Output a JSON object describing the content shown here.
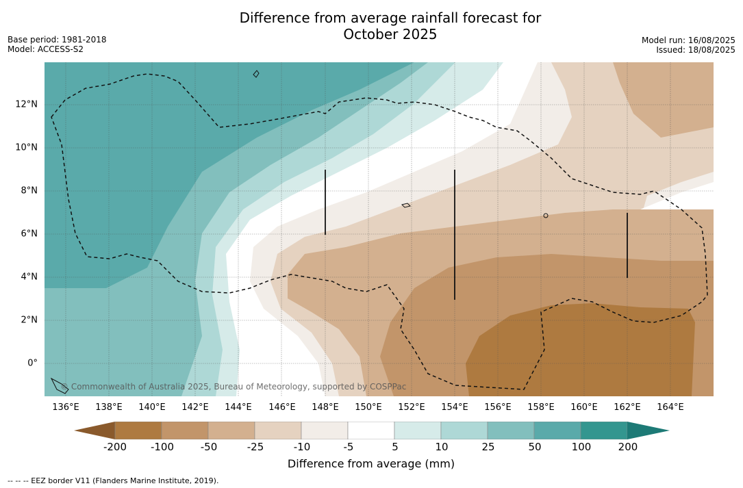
{
  "title_line1": "Difference from average rainfall forecast for",
  "title_line2": "October 2025",
  "base_period": "Base period: 1981-2018",
  "model": "Model: ACCESS-S2",
  "model_run": "Model run: 16/08/2025",
  "issued": "Issued: 18/08/2025",
  "lat_labels": [
    "12°N",
    "10°N",
    "8°N",
    "6°N",
    "4°N",
    "2°N",
    "0°"
  ],
  "lon_labels": [
    "136°E",
    "138°E",
    "140°E",
    "142°E",
    "144°E",
    "146°E",
    "148°E",
    "150°E",
    "152°E",
    "154°E",
    "156°E",
    "158°E",
    "160°E",
    "162°E",
    "164°E"
  ],
  "copyright": "© Commonwealth of Australia 2025, Bureau of Meteorology, supported by COSPPac",
  "colorbar": {
    "labels": [
      "-200",
      "-100",
      "-50",
      "-25",
      "-10",
      "-5",
      "5",
      "10",
      "25",
      "50",
      "100",
      "200"
    ],
    "colors": [
      "#8a5a2c",
      "#ae7a40",
      "#c2956a",
      "#d3b08f",
      "#e5d2c0",
      "#f2ede8",
      "#ffffff",
      "#d6ebe9",
      "#aed8d6",
      "#82bfbd",
      "#5aaaaa",
      "#33968f",
      "#1d7a76"
    ],
    "title": "Difference from average (mm)"
  },
  "footnote": "--  --  -- EEZ border V11 (Flanders Marine Institute, 2019)."
}
